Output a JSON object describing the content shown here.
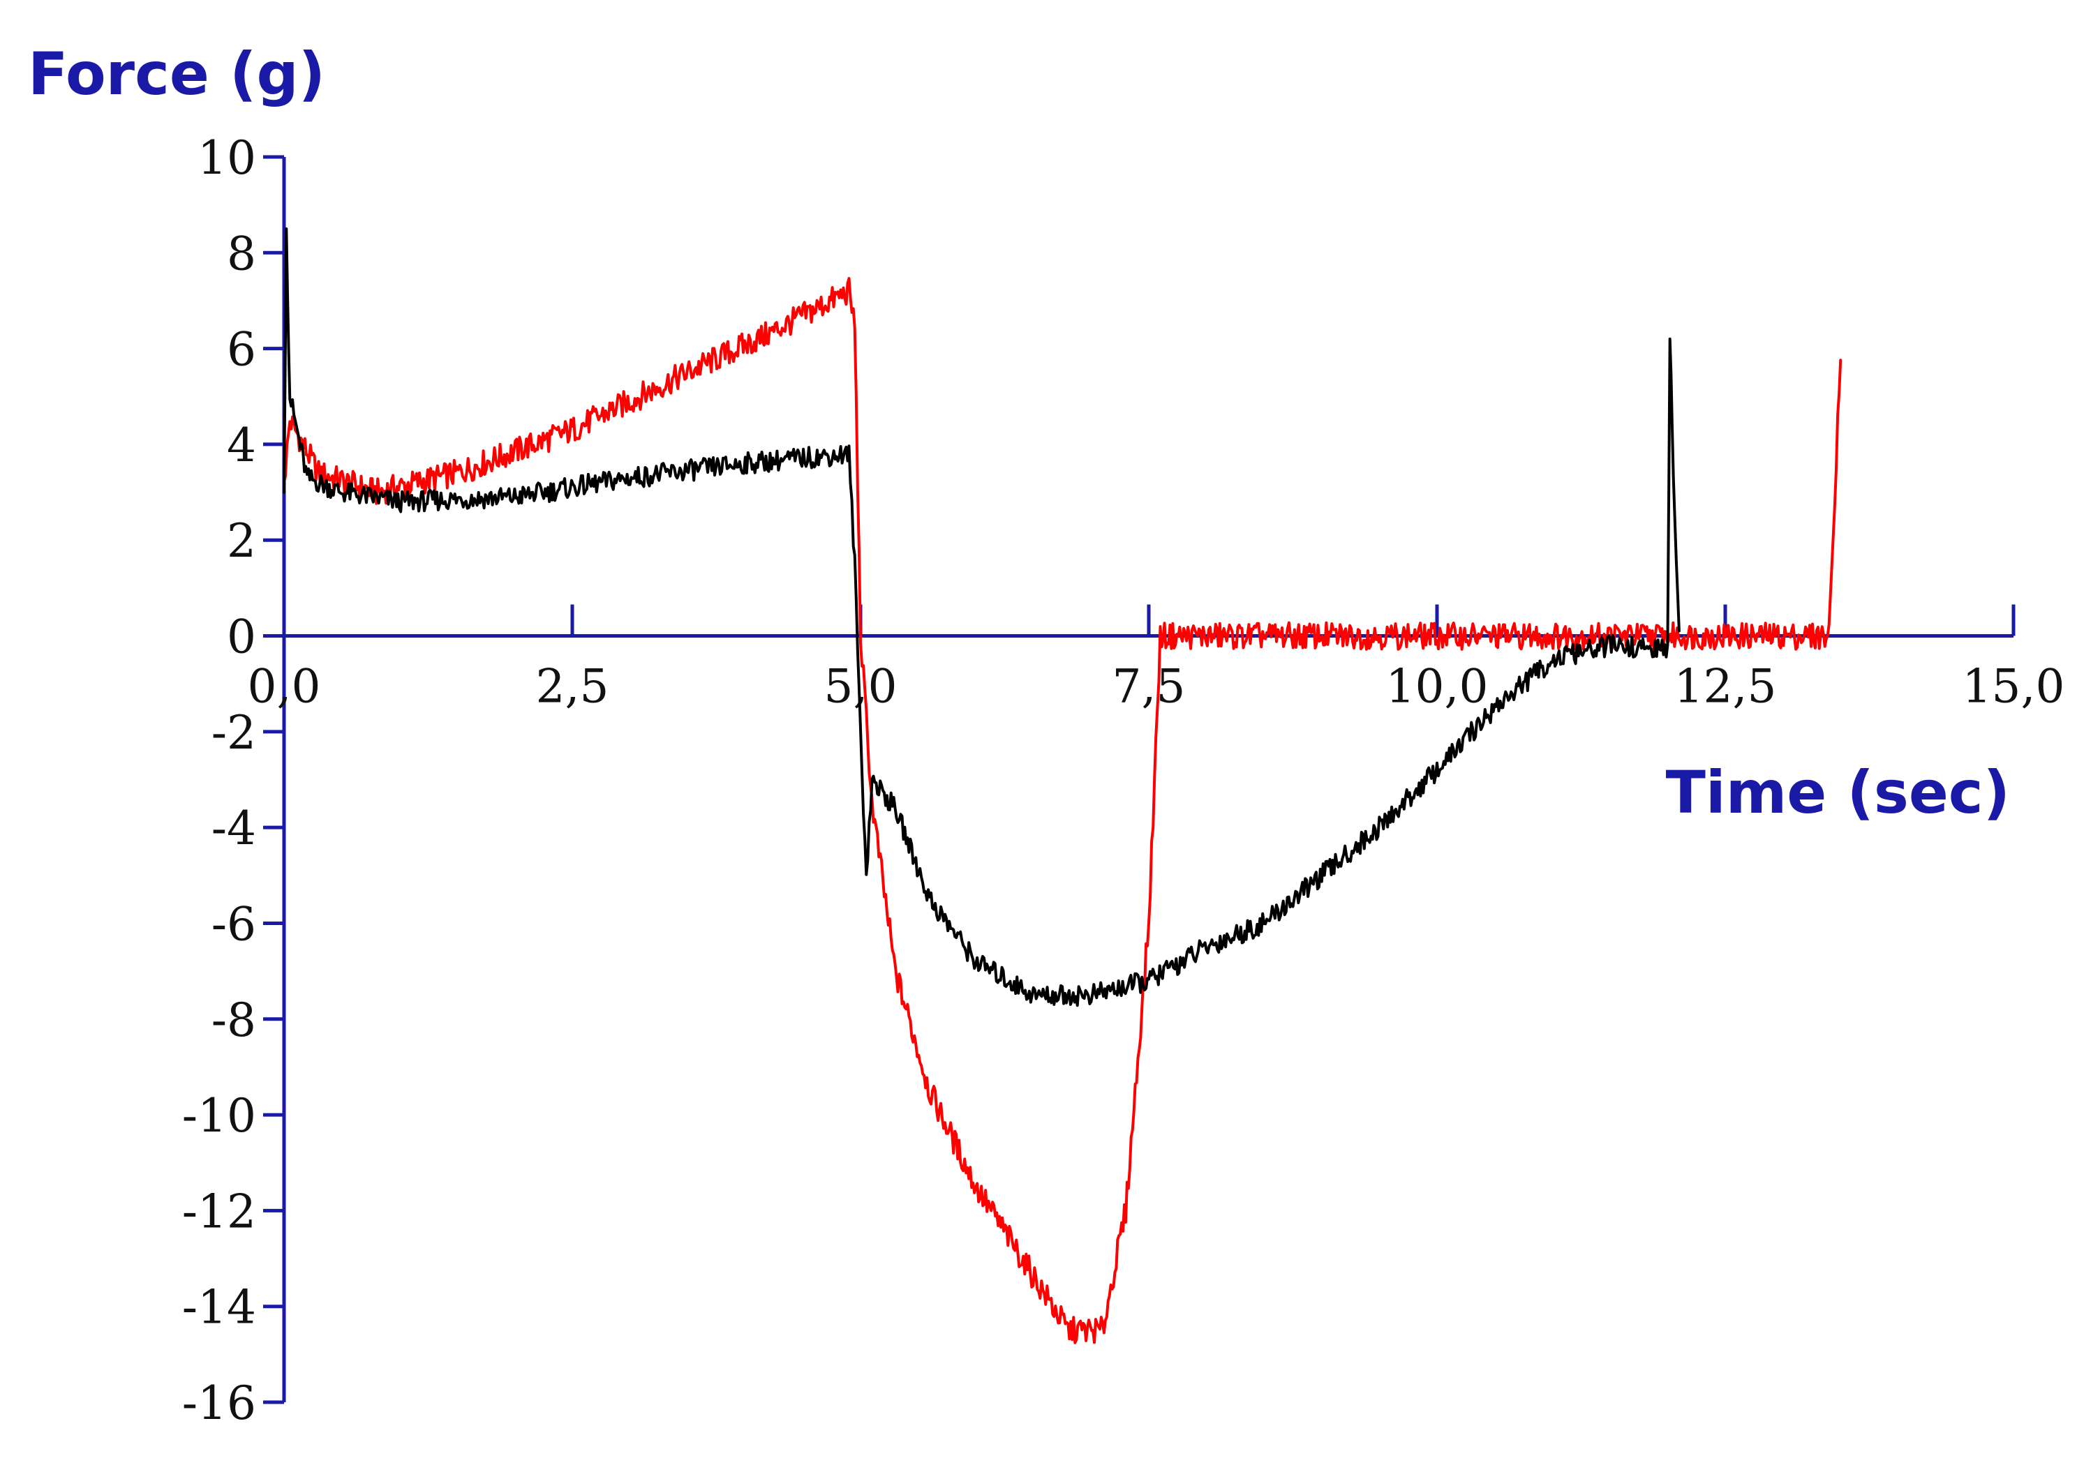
{
  "chart_data": {
    "type": "line",
    "ylabel": "Force (g)",
    "xlabel": "Time (sec)",
    "xlim": [
      0,
      15
    ],
    "ylim": [
      -16,
      10
    ],
    "x_ticks": [
      0,
      2.5,
      5,
      7.5,
      10,
      12.5,
      15
    ],
    "x_tick_labels": [
      "0,0",
      "2,5",
      "5,0",
      "7,5",
      "10,0",
      "12,5",
      "15,0"
    ],
    "y_ticks": [
      10,
      8,
      6,
      4,
      2,
      0,
      -2,
      -4,
      -6,
      -8,
      -10,
      -12,
      -14,
      -16
    ],
    "y_tick_labels": [
      "10",
      "8",
      "6",
      "4",
      "2",
      "0",
      "-2",
      "-4",
      "-6",
      "-8",
      "-10",
      "-12",
      "-14",
      "-16"
    ],
    "grid": false,
    "legend": "none",
    "series": [
      {
        "color": "#ff0000",
        "x": [
          0,
          0.05,
          0.3,
          0.8,
          1.5,
          2.5,
          3.5,
          4.2,
          4.9,
          4.95,
          5.0,
          5.1,
          5.3,
          5.6,
          6.0,
          6.4,
          6.8,
          7.1,
          7.3,
          7.5,
          7.6,
          8.5,
          10.0,
          12.0,
          13.4,
          13.45,
          13.5
        ],
        "y": [
          3.2,
          4.5,
          3.4,
          3.0,
          3.4,
          4.3,
          5.5,
          6.3,
          7.2,
          6.5,
          0,
          -3.5,
          -7.0,
          -9.5,
          -11.5,
          -13.0,
          -14.5,
          -14.5,
          -12.0,
          -6.0,
          0,
          0,
          0,
          0,
          0,
          3.0,
          6.0
        ]
      },
      {
        "color": "#000000",
        "x": [
          0,
          0.02,
          0.05,
          0.2,
          0.5,
          1.0,
          2.0,
          3.0,
          4.0,
          4.9,
          4.95,
          5.0,
          5.05,
          5.1,
          5.3,
          5.6,
          6.0,
          6.5,
          7.0,
          7.5,
          8.0,
          8.5,
          9.0,
          9.5,
          10.0,
          10.5,
          11.0,
          11.5,
          12.0,
          12.02,
          12.05,
          12.1
        ],
        "y": [
          3.0,
          8.5,
          5.0,
          3.3,
          3.0,
          2.8,
          2.9,
          3.3,
          3.6,
          3.8,
          1.5,
          -2.0,
          -5.0,
          -3.0,
          -3.6,
          -5.5,
          -6.8,
          -7.5,
          -7.5,
          -7.2,
          -6.5,
          -6.0,
          -5.0,
          -4.0,
          -2.8,
          -1.5,
          -0.5,
          -0.2,
          -0.3,
          6.2,
          3.5,
          0
        ]
      }
    ]
  }
}
